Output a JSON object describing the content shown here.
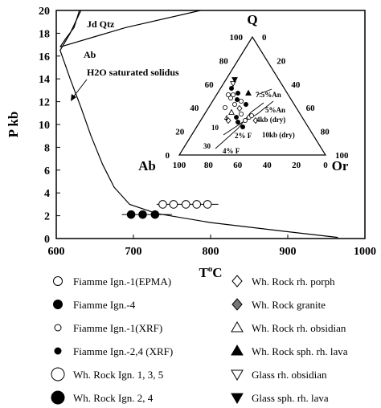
{
  "chart_data": {
    "type": "scatter",
    "xlabel": "T",
    "xlabel_sup": "o",
    "xlabel_unit": "C",
    "ylabel": "P kb",
    "xlim": [
      600,
      1000
    ],
    "ylim": [
      0,
      20
    ],
    "x_ticks": [
      "600",
      "700",
      "800",
      "900",
      "1000"
    ],
    "y_ticks": [
      "0",
      "2",
      "4",
      "6",
      "8",
      "10",
      "12",
      "14",
      "16",
      "18",
      "20"
    ],
    "grid": false,
    "annotations": [
      "Jd Qtz",
      "Ab",
      "H2O saturated solidus"
    ],
    "curves": [
      {
        "id": "solidus",
        "points": [
          [
            632,
            20
          ],
          [
            618,
            18
          ],
          [
            605,
            16.5
          ],
          [
            618,
            14
          ],
          [
            632,
            11.5
          ],
          [
            645,
            9
          ],
          [
            660,
            6.5
          ],
          [
            675,
            4.5
          ],
          [
            695,
            3.0
          ],
          [
            730,
            2.2
          ],
          [
            800,
            1.4
          ],
          [
            900,
            0.6
          ],
          [
            965,
            0.1
          ]
        ]
      },
      {
        "id": "ab-jdqtz-boundary",
        "points": [
          [
            605,
            16.8
          ],
          [
            690,
            18.5
          ],
          [
            787,
            20
          ]
        ]
      },
      {
        "id": "steep-boundary",
        "points": [
          [
            605,
            16.8
          ],
          [
            612,
            17.5
          ],
          [
            623,
            18.5
          ],
          [
            630,
            20
          ]
        ]
      }
    ],
    "series": [
      {
        "name": "Fiamme Ign.-4",
        "marker": "filled-circle",
        "points": [
          [
            697,
            2.1
          ],
          [
            712,
            2.1
          ],
          [
            728,
            2.1
          ]
        ],
        "error_x": [
          [
            685,
            750
          ]
        ]
      },
      {
        "name": "Fiamme Ign.-1(EPMA)",
        "marker": "open-circle",
        "points": [
          [
            738,
            3.0
          ],
          [
            752,
            3.0
          ],
          [
            768,
            3.0
          ],
          [
            782,
            3.0
          ],
          [
            796,
            3.0
          ]
        ],
        "error_x": [
          [
            730,
            810
          ]
        ]
      }
    ],
    "inset": {
      "type": "ternary",
      "vertices": {
        "top": "Q",
        "left": "Ab",
        "right": "Or"
      },
      "ticks": [
        "0",
        "20",
        "40",
        "60",
        "80",
        "100"
      ],
      "annotations": [
        "7.5%An",
        "5%An",
        "4kb (dry)",
        "10kb (dry)",
        "2% F",
        "4% F",
        "10",
        "4",
        "30"
      ]
    },
    "legend": [
      {
        "label": "Fiamme Ign.-1(EPMA)",
        "marker": "open-circle-m"
      },
      {
        "label": "Fiamme Ign.-4",
        "marker": "filled-circle-m"
      },
      {
        "label": "Fiamme Ign.-1(XRF)",
        "marker": "open-circle-s"
      },
      {
        "label": "Fiamme Ign.-2,4 (XRF)",
        "marker": "filled-circle-s"
      },
      {
        "label": "Wh. Rock Ign. 1, 3, 5",
        "marker": "open-circle-l"
      },
      {
        "label": "Wh. Rock Ign. 2, 4",
        "marker": "filled-circle-l"
      },
      {
        "label": "Wh. Rock rh. porph",
        "marker": "open-diamond"
      },
      {
        "label": "Wh. Rock granite",
        "marker": "gray-diamond"
      },
      {
        "label": "Wh. Rock rh. obsidian",
        "marker": "open-triangle-up"
      },
      {
        "label": "Wh. Rock sph. rh. lava",
        "marker": "filled-triangle-up"
      },
      {
        "label": "Glass rh. obsidian",
        "marker": "open-triangle-down"
      },
      {
        "label": "Glass sph. rh. lava",
        "marker": "filled-triangle-down"
      }
    ]
  }
}
